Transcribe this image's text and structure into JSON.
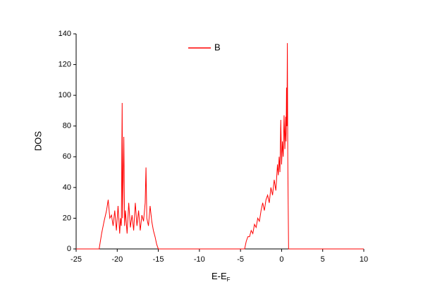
{
  "chart_data": {
    "type": "line",
    "x_label": "E-E",
    "x_label_subscript": "F",
    "y_label": "DOS",
    "x": [
      -25,
      -22.2,
      -21.9,
      -21.6,
      -21.3,
      -21.1,
      -20.9,
      -20.7,
      -20.5,
      -20.3,
      -20.1,
      -19.9,
      -19.7,
      -19.6,
      -19.5,
      -19.4,
      -19.35,
      -19.2,
      -19.1,
      -19.0,
      -18.8,
      -18.6,
      -18.4,
      -18.2,
      -18.0,
      -17.8,
      -17.6,
      -17.4,
      -17.2,
      -17.0,
      -16.8,
      -16.6,
      -16.5,
      -16.4,
      -16.2,
      -16.0,
      -15.8,
      -15.6,
      -15.4,
      -15.2,
      -15.0,
      -4.5,
      -4.3,
      -4.1,
      -3.9,
      -3.7,
      -3.5,
      -3.3,
      -3.1,
      -2.9,
      -2.7,
      -2.5,
      -2.3,
      -2.1,
      -1.9,
      -1.7,
      -1.5,
      -1.3,
      -1.1,
      -0.9,
      -0.7,
      -0.5,
      -0.4,
      -0.3,
      -0.2,
      -0.1,
      0.0,
      0.1,
      0.2,
      0.3,
      0.4,
      0.5,
      0.55,
      0.6,
      0.65,
      0.7,
      0.75,
      0.8,
      0.85,
      10
    ],
    "series": [
      {
        "name": "B",
        "color": "#ff0000",
        "values": [
          0,
          0,
          10,
          18,
          25,
          32,
          20,
          22,
          15,
          25,
          12,
          28,
          10,
          20,
          15,
          95,
          20,
          73,
          15,
          25,
          10,
          30,
          14,
          22,
          12,
          30,
          15,
          25,
          12,
          22,
          18,
          30,
          53,
          20,
          15,
          28,
          18,
          12,
          8,
          3,
          0,
          0,
          5,
          8,
          8,
          12,
          10,
          16,
          14,
          20,
          18,
          25,
          30,
          25,
          32,
          35,
          30,
          40,
          35,
          45,
          38,
          55,
          48,
          60,
          50,
          84,
          55,
          70,
          60,
          87,
          65,
          86,
          70,
          105,
          80,
          134,
          60,
          30,
          0,
          0
        ]
      }
    ],
    "xlim": [
      -25,
      10
    ],
    "xticks": [
      -25,
      -20,
      -15,
      -10,
      -5,
      0,
      5,
      10
    ],
    "ylim": [
      0,
      140
    ],
    "yticks": [
      0,
      20,
      40,
      60,
      80,
      100,
      120,
      140
    ],
    "legend": "top"
  }
}
